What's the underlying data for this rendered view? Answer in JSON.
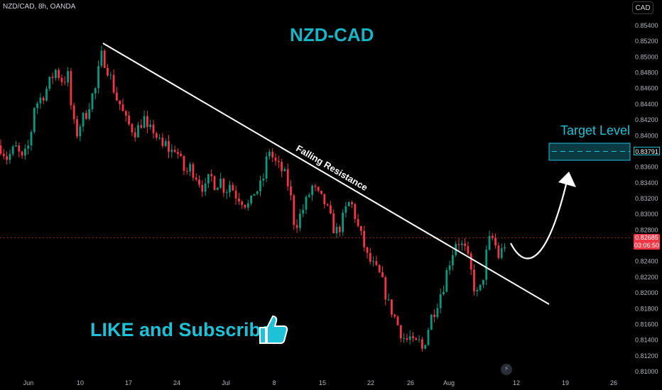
{
  "symbol_label": "NZD/CAD, 8h, OANDA",
  "currency_button": "CAD",
  "colors": {
    "up": "#089981",
    "down": "#f23645",
    "accent": "#1ec1d6",
    "line": "#ffffff"
  },
  "chart_data": {
    "type": "candlestick",
    "title": "NZD-CAD",
    "x_tick_labels": [
      "Jun",
      "10",
      "17",
      "24",
      "Jul",
      "8",
      "15",
      "22",
      "26",
      "Aug",
      "12",
      "19",
      "26"
    ],
    "y_tick_labels": [
      "0.85400",
      "0.85200",
      "0.85000",
      "0.84800",
      "0.84600",
      "0.84400",
      "0.84200",
      "0.84000",
      "0.83800",
      "0.83600",
      "0.83400",
      "0.83200",
      "0.83000",
      "0.82800",
      "0.82600",
      "0.82400",
      "0.82200",
      "0.82000",
      "0.81800",
      "0.81600",
      "0.81400",
      "0.81200",
      "0.81000"
    ],
    "ylim": [
      0.8092,
      0.8556
    ],
    "grid": false,
    "current_price": "0.82685",
    "countdown": "03:06:50",
    "target_price": "0.83791",
    "annotations": {
      "trendline_label": "Falling Resistance",
      "target_label": "Target Level",
      "cta": "LIKE and Subscribe"
    },
    "close_path": [
      [
        0,
        0.8388
      ],
      [
        10,
        0.8372
      ],
      [
        22,
        0.8385
      ],
      [
        32,
        0.8368
      ],
      [
        42,
        0.8392
      ],
      [
        48,
        0.8438
      ],
      [
        55,
        0.8445
      ],
      [
        63,
        0.8455
      ],
      [
        70,
        0.8468
      ],
      [
        78,
        0.8484
      ],
      [
        88,
        0.847
      ],
      [
        96,
        0.8476
      ],
      [
        101,
        0.8428
      ],
      [
        107,
        0.84
      ],
      [
        114,
        0.8418
      ],
      [
        121,
        0.8428
      ],
      [
        128,
        0.8448
      ],
      [
        135,
        0.846
      ],
      [
        142,
        0.8502
      ],
      [
        148,
        0.8494
      ],
      [
        153,
        0.8482
      ],
      [
        158,
        0.8466
      ],
      [
        164,
        0.8448
      ],
      [
        170,
        0.8438
      ],
      [
        176,
        0.842
      ],
      [
        183,
        0.8412
      ],
      [
        190,
        0.8406
      ],
      [
        197,
        0.8412
      ],
      [
        202,
        0.8426
      ],
      [
        208,
        0.8402
      ],
      [
        215,
        0.841
      ],
      [
        222,
        0.8396
      ],
      [
        228,
        0.8384
      ],
      [
        234,
        0.839
      ],
      [
        240,
        0.8378
      ],
      [
        247,
        0.8386
      ],
      [
        254,
        0.8368
      ],
      [
        261,
        0.8352
      ],
      [
        268,
        0.836
      ],
      [
        275,
        0.8352
      ],
      [
        282,
        0.834
      ],
      [
        289,
        0.8332
      ],
      [
        296,
        0.835
      ],
      [
        303,
        0.8338
      ],
      [
        310,
        0.8345
      ],
      [
        317,
        0.833
      ],
      [
        324,
        0.834
      ],
      [
        331,
        0.8326
      ],
      [
        338,
        0.8322
      ],
      [
        345,
        0.8315
      ],
      [
        352,
        0.831
      ],
      [
        358,
        0.833
      ],
      [
        365,
        0.8332
      ],
      [
        372,
        0.835
      ],
      [
        378,
        0.8386
      ],
      [
        384,
        0.8372
      ],
      [
        390,
        0.8362
      ],
      [
        397,
        0.8356
      ],
      [
        404,
        0.8344
      ],
      [
        410,
        0.8318
      ],
      [
        415,
        0.8284
      ],
      [
        421,
        0.8296
      ],
      [
        427,
        0.8308
      ],
      [
        433,
        0.832
      ],
      [
        439,
        0.8336
      ],
      [
        445,
        0.8328
      ],
      [
        451,
        0.832
      ],
      [
        457,
        0.8315
      ],
      [
        463,
        0.83
      ],
      [
        469,
        0.8284
      ],
      [
        475,
        0.8278
      ],
      [
        481,
        0.829
      ],
      [
        487,
        0.8306
      ],
      [
        493,
        0.8318
      ],
      [
        499,
        0.8302
      ],
      [
        505,
        0.828
      ],
      [
        511,
        0.8266
      ],
      [
        517,
        0.8246
      ],
      [
        523,
        0.8238
      ],
      [
        529,
        0.823
      ],
      [
        535,
        0.8222
      ],
      [
        541,
        0.8206
      ],
      [
        547,
        0.8186
      ],
      [
        553,
        0.8176
      ],
      [
        559,
        0.8162
      ],
      [
        565,
        0.815
      ],
      [
        571,
        0.814
      ],
      [
        577,
        0.8144
      ],
      [
        583,
        0.8132
      ],
      [
        589,
        0.814
      ],
      [
        595,
        0.8128
      ],
      [
        601,
        0.815
      ],
      [
        607,
        0.817
      ],
      [
        613,
        0.8182
      ],
      [
        619,
        0.8198
      ],
      [
        625,
        0.8212
      ],
      [
        631,
        0.8236
      ],
      [
        637,
        0.8252
      ],
      [
        643,
        0.827
      ],
      [
        649,
        0.8262
      ],
      [
        655,
        0.8254
      ],
      [
        661,
        0.8236
      ],
      [
        667,
        0.821
      ],
      [
        673,
        0.8196
      ],
      [
        679,
        0.8214
      ],
      [
        685,
        0.8252
      ],
      [
        691,
        0.8274
      ],
      [
        697,
        0.8262
      ],
      [
        703,
        0.8244
      ],
      [
        709,
        0.8262
      ],
      [
        714,
        0.8266
      ]
    ]
  }
}
